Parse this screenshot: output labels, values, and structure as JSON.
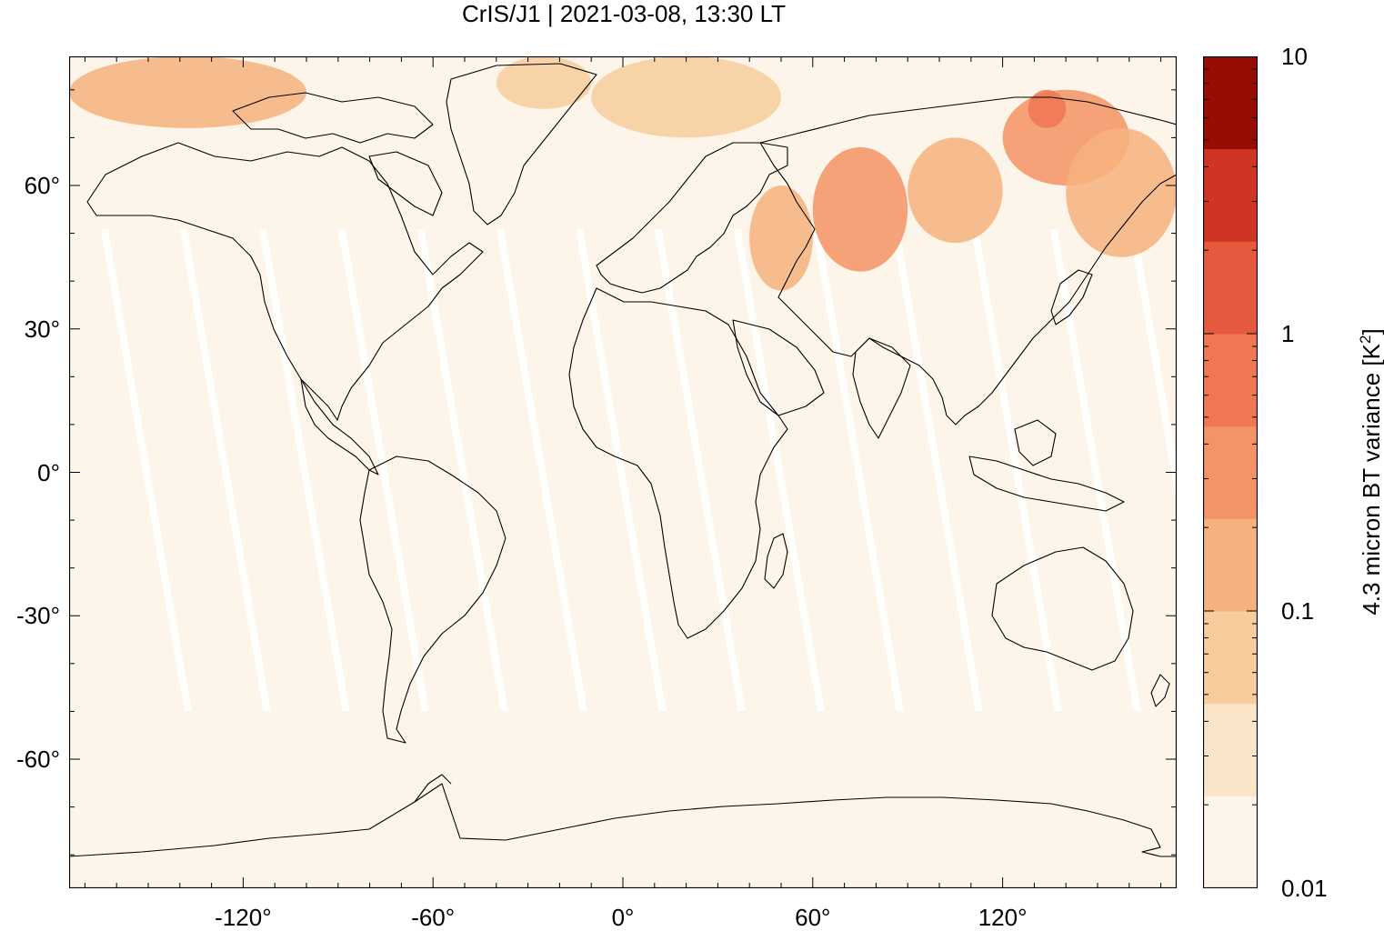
{
  "title": "CrIS/J1 | 2021-03-08, 13:30 LT",
  "map": {
    "projection": "equirectangular",
    "lon_range": [
      -175,
      175
    ],
    "lat_range": [
      -87,
      87
    ],
    "background_color": "#fdf5e9",
    "swath_gap_color": "#ffffff",
    "coastline_color": "#000000"
  },
  "axes": {
    "x_ticks": [
      -120,
      -60,
      0,
      60,
      120
    ],
    "x_tick_labels": [
      "-120°",
      "-60°",
      "0°",
      "60°",
      "120°"
    ],
    "y_ticks": [
      60,
      30,
      0,
      -30,
      -60
    ],
    "y_tick_labels": [
      "60°",
      "30°",
      "0°",
      "-30°",
      "-60°"
    ]
  },
  "colorbar": {
    "label_main": "4.3 micron BT variance [K",
    "label_sup": "2",
    "label_end": "]",
    "scale": "log",
    "range": [
      0.01,
      10
    ],
    "tick_values": [
      10,
      1,
      0.1,
      0.01
    ],
    "tick_labels": [
      "10",
      "1",
      "0.1",
      "0.01"
    ],
    "colors": [
      "#fdf5e9",
      "#fbe5c8",
      "#f8cc9c",
      "#f6b27e",
      "#f49365",
      "#ef7752",
      "#e55a3f",
      "#cf3424",
      "#980c05"
    ]
  },
  "chart_data": {
    "type": "heatmap",
    "title": "CrIS/J1 | 2021-03-08, 13:30 LT",
    "xlabel": "",
    "ylabel": "",
    "zlabel": "4.3 micron BT variance [K2]",
    "xlim": [
      -175,
      175
    ],
    "ylim": [
      -87,
      87
    ],
    "zlim": [
      0.01,
      10
    ],
    "zscale": "log",
    "regions": [
      {
        "lon": [
          -175,
          -100
        ],
        "lat": [
          72,
          87
        ],
        "value": 0.1
      },
      {
        "lon": [
          -40,
          -10
        ],
        "lat": [
          76,
          87
        ],
        "value": 0.06
      },
      {
        "lon": [
          40,
          60
        ],
        "lat": [
          38,
          60
        ],
        "value": 0.2
      },
      {
        "lon": [
          60,
          90
        ],
        "lat": [
          42,
          68
        ],
        "value": 0.3
      },
      {
        "lon": [
          90,
          120
        ],
        "lat": [
          48,
          70
        ],
        "value": 0.2
      },
      {
        "lon": [
          120,
          160
        ],
        "lat": [
          60,
          80
        ],
        "value": 0.4
      },
      {
        "lon": [
          128,
          140
        ],
        "lat": [
          72,
          80
        ],
        "value": 0.8
      },
      {
        "lon": [
          140,
          175
        ],
        "lat": [
          45,
          72
        ],
        "value": 0.1
      },
      {
        "lon": [
          -10,
          50
        ],
        "lat": [
          70,
          87
        ],
        "value": 0.05
      },
      {
        "lon": [
          -175,
          175
        ],
        "lat": [
          -10,
          60
        ],
        "value": 0.01
      },
      {
        "lon": [
          -175,
          175
        ],
        "lat": [
          -87,
          -60
        ],
        "value": 0.015
      }
    ]
  }
}
